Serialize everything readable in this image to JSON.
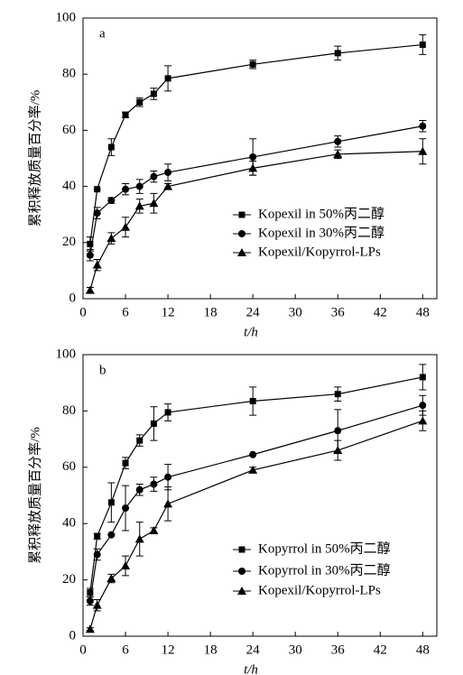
{
  "chart_data": [
    {
      "type": "line",
      "panel_label": "a",
      "x_label": "t/h",
      "y_label": "累积释放质量百分率/%",
      "x": [
        1,
        2,
        4,
        6,
        8,
        10,
        12,
        24,
        36,
        48
      ],
      "xlim": [
        0,
        50
      ],
      "xticks": [
        0,
        6,
        12,
        18,
        24,
        30,
        36,
        42,
        48
      ],
      "ylim": [
        0,
        100
      ],
      "yticks": [
        0,
        20,
        40,
        60,
        80,
        100
      ],
      "series": [
        {
          "name": "Kopexil in 50%丙二醇",
          "color": "#000000",
          "marker": "square",
          "values": [
            19.5,
            39,
            54,
            65.5,
            70,
            73,
            78.5,
            83.5,
            87.5,
            90.5
          ],
          "errors": [
            2.5,
            0,
            3,
            1,
            1.5,
            2,
            4.5,
            1.5,
            2.5,
            3.5
          ]
        },
        {
          "name": "Kopexil in 30%丙二醇",
          "color": "#000000",
          "marker": "circle",
          "values": [
            15.5,
            30.5,
            35,
            39,
            40,
            43.5,
            45,
            50.5,
            56,
            61.5
          ],
          "errors": [
            2,
            2,
            1,
            2,
            2.5,
            2,
            3,
            6.5,
            2,
            2
          ]
        },
        {
          "name": "Kopexil/Kopyrrol-LPs",
          "color": "#000000",
          "marker": "triangle",
          "values": [
            3,
            12,
            21.5,
            25.5,
            33,
            34,
            40,
            46.5,
            51.5,
            52.5
          ],
          "errors": [
            1,
            2,
            2,
            3.5,
            2.5,
            3.5,
            1,
            2.5,
            1.5,
            4.5
          ]
        }
      ]
    },
    {
      "type": "line",
      "panel_label": "b",
      "x_label": "t/h",
      "y_label": "累积释放质量百分率/%",
      "x": [
        1,
        2,
        4,
        6,
        8,
        10,
        12,
        24,
        36,
        48
      ],
      "xlim": [
        0,
        50
      ],
      "xticks": [
        0,
        6,
        12,
        18,
        24,
        30,
        36,
        42,
        48
      ],
      "ylim": [
        0,
        100
      ],
      "yticks": [
        0,
        20,
        40,
        60,
        80,
        100
      ],
      "series": [
        {
          "name": "Kopyrrol in 50%丙二醇",
          "color": "#000000",
          "marker": "square",
          "values": [
            15.5,
            35.5,
            47.5,
            61.5,
            69.5,
            75.5,
            79.5,
            83.5,
            86,
            92
          ],
          "errors": [
            1.5,
            1,
            7,
            2,
            2,
            6,
            3,
            5,
            2.5,
            4.5
          ]
        },
        {
          "name": "Kopyrrol in 30%丙二醇",
          "color": "#000000",
          "marker": "circle",
          "values": [
            12.5,
            29,
            36,
            45.5,
            52,
            54,
            56.5,
            64.5,
            73,
            82
          ],
          "errors": [
            1.5,
            2,
            0,
            8,
            2,
            2.5,
            4.5,
            0,
            7.5,
            3.5
          ]
        },
        {
          "name": "Kopexil/Kopyrrol-LPs",
          "color": "#000000",
          "marker": "triangle",
          "values": [
            2.5,
            11,
            20.5,
            25,
            34.5,
            37.5,
            47,
            59,
            66,
            76.5
          ],
          "errors": [
            0.5,
            2,
            1.5,
            3.5,
            6,
            1,
            6,
            1,
            3.5,
            3.5
          ]
        }
      ]
    }
  ]
}
